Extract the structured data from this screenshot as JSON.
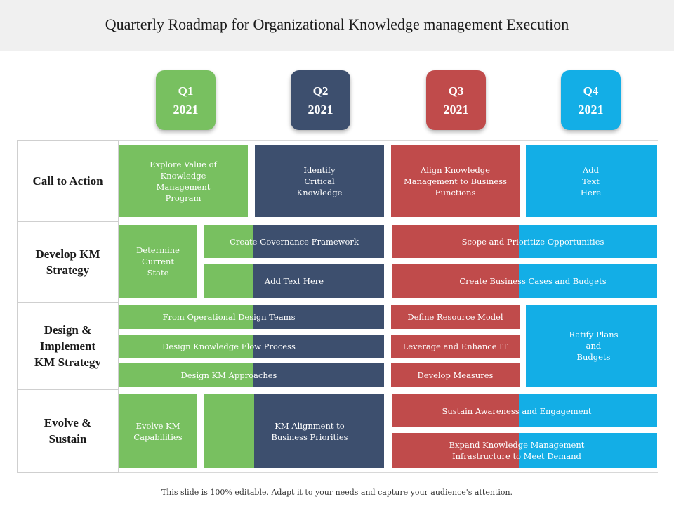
{
  "title": "Quarterly Roadmap for Organizational Knowledge management Execution",
  "quarters": [
    {
      "q": "Q1",
      "year": "2021",
      "color": "#78c060"
    },
    {
      "q": "Q2",
      "year": "2021",
      "color": "#3d4f6e"
    },
    {
      "q": "Q3",
      "year": "2021",
      "color": "#c04b4b"
    },
    {
      "q": "Q4",
      "year": "2021",
      "color": "#13aee6"
    }
  ],
  "rows": [
    {
      "label": "Call to Action"
    },
    {
      "label": "Develop KM\nStrategy"
    },
    {
      "label": "Design &\nImplement\nKM Strategy"
    },
    {
      "label": "Evolve &\nSustain"
    }
  ],
  "cells": {
    "explore_value": "Explore Value of\nKnowledge\nManagement\nProgram",
    "identify_critical": "Identify\nCritical\nKnowledge",
    "align_knowledge": "Align Knowledge\nManagement  to Business\nFunctions",
    "add_text_q4": "Add\nText\nHere",
    "determine_state": "Determine\nCurrent\nState",
    "create_governance": "Create  Governance  Framework",
    "add_text_here": "Add Text Here",
    "scope_prioritize": "Scope and Prioritize Opportunities",
    "create_business_cases": "Create  Business Cases and Budgets",
    "operational_design": "From Operational  Design  Teams",
    "design_flow": "Design Knowledge  Flow Process",
    "design_approaches": "Design KM Approaches",
    "resource_model": "Define Resource Model",
    "leverage_it": "Leverage  and Enhance  IT",
    "develop_measures": "Develop Measures",
    "ratify_plans": "Ratify Plans\nand\nBudgets",
    "evolve_capabilities": "Evolve KM\nCapabilities",
    "km_alignment": "KM Alignment  to\nBusiness Priorities",
    "sustain_awareness": "Sustain  Awareness  and Engagement",
    "expand_infrastructure": "Expand  Knowledge  Management\nInfrastructure  to Meet Demand"
  },
  "footer": "This slide is 100% editable. Adapt it to your needs and capture your audience's attention."
}
